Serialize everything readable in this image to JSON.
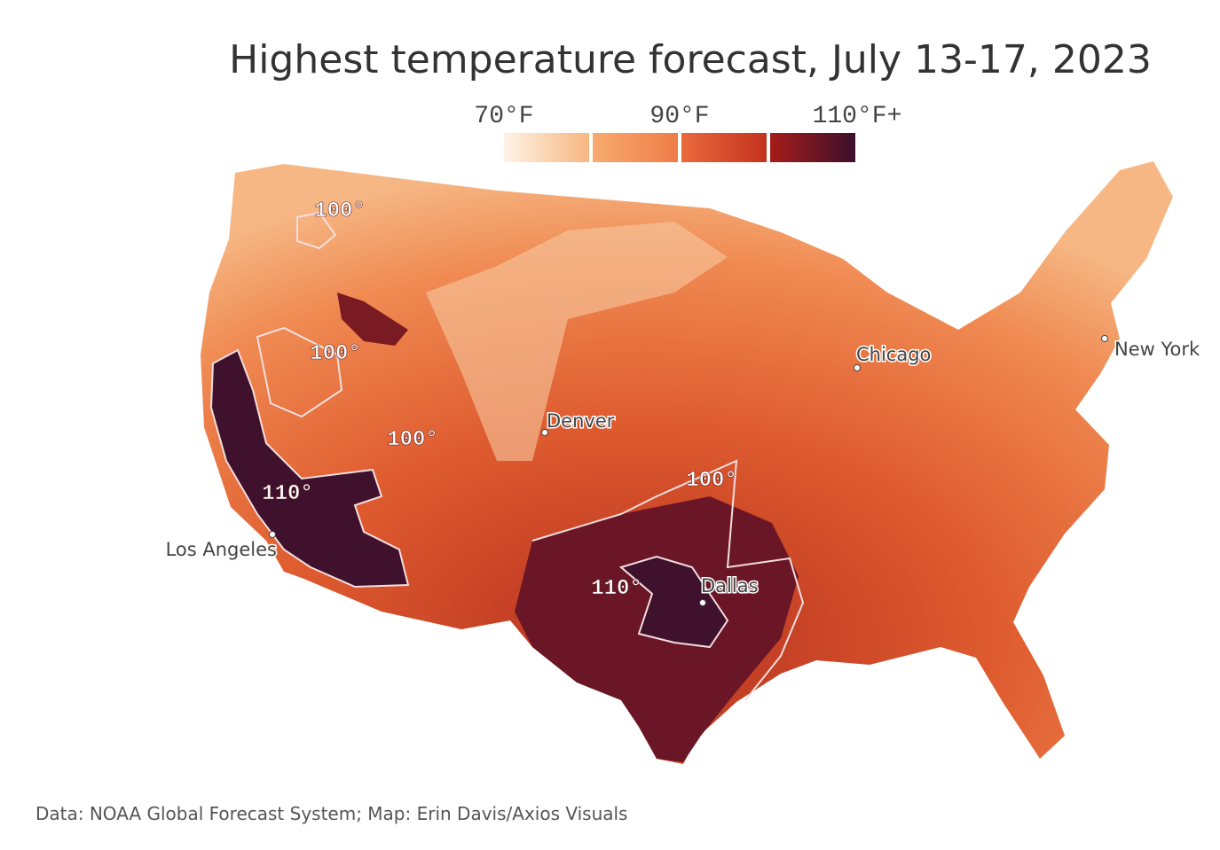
{
  "title": "Highest temperature forecast, July 13-17, 2023",
  "legend": {
    "labels": [
      "70°F",
      "90°F",
      "110°F+"
    ]
  },
  "contour_labels": [
    "100°",
    "100°",
    "100°",
    "110°",
    "100°",
    "110°"
  ],
  "cities": [
    "Chicago",
    "New York",
    "Denver",
    "Los Angeles",
    "Dallas"
  ],
  "source": "Data: NOAA Global Forecast System; Map: Erin Davis/Axios Visuals"
}
